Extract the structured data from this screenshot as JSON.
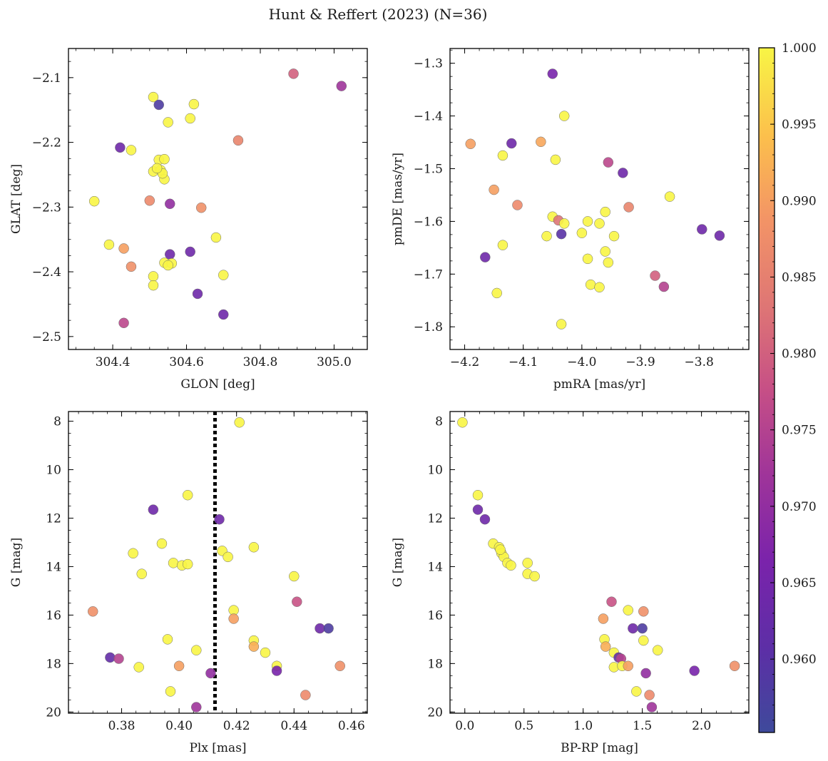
{
  "title": "Hunt & Reffert (2023) (N=36)",
  "colorbar": {
    "range": [
      0.9552,
      1.0
    ],
    "ticks": [
      "0.960",
      "0.965",
      "0.970",
      "0.975",
      "0.980",
      "0.985",
      "0.990",
      "0.995",
      "1.000"
    ],
    "colormap": "plasma"
  },
  "chart_data": [
    {
      "type": "scatter",
      "xlabel": "GLON [deg]",
      "ylabel": "GLAT [deg]",
      "xlim": [
        304.28,
        305.09
      ],
      "ylim": [
        -2.52,
        -2.055
      ],
      "xticks": [
        304.4,
        304.6,
        304.8,
        305.0
      ],
      "xticklabels": [
        "304.4",
        "304.6",
        "304.8",
        "305.0"
      ],
      "yticks": [
        -2.1,
        -2.2,
        -2.3,
        -2.4,
        -2.5
      ],
      "yticklabels": [
        "−2.1",
        "−2.2",
        "−2.3",
        "−2.4",
        "−2.5"
      ],
      "points": [
        [
          304.89,
          -2.094,
          0.98
        ],
        [
          305.02,
          -2.113,
          0.972
        ],
        [
          304.51,
          -2.13,
          1.0
        ],
        [
          304.525,
          -2.142,
          0.958
        ],
        [
          304.62,
          -2.141,
          1.0
        ],
        [
          304.61,
          -2.163,
          1.0
        ],
        [
          304.55,
          -2.169,
          1.0
        ],
        [
          304.74,
          -2.197,
          0.986
        ],
        [
          304.42,
          -2.208,
          0.964
        ],
        [
          304.45,
          -2.212,
          1.0
        ],
        [
          304.525,
          -2.227,
          1.0
        ],
        [
          304.54,
          -2.226,
          1.0
        ],
        [
          304.51,
          -2.245,
          1.0
        ],
        [
          304.53,
          -2.243,
          1.0
        ],
        [
          304.54,
          -2.257,
          1.0
        ],
        [
          304.35,
          -2.291,
          1.0
        ],
        [
          304.5,
          -2.29,
          0.987
        ],
        [
          304.555,
          -2.295,
          0.97
        ],
        [
          304.64,
          -2.301,
          0.988
        ],
        [
          304.68,
          -2.347,
          1.0
        ],
        [
          304.39,
          -2.358,
          1.0
        ],
        [
          304.43,
          -2.364,
          0.99
        ],
        [
          304.61,
          -2.369,
          0.964
        ],
        [
          304.555,
          -2.373,
          0.964
        ],
        [
          304.54,
          -2.386,
          1.0
        ],
        [
          304.56,
          -2.387,
          1.0
        ],
        [
          304.45,
          -2.392,
          0.988
        ],
        [
          304.7,
          -2.405,
          1.0
        ],
        [
          304.51,
          -2.407,
          1.0
        ],
        [
          304.51,
          -2.421,
          1.0
        ],
        [
          304.63,
          -2.434,
          0.964
        ],
        [
          304.7,
          -2.466,
          0.964
        ],
        [
          304.43,
          -2.479,
          0.976
        ],
        [
          304.55,
          -2.39,
          1.0
        ],
        [
          304.535,
          -2.248,
          1.0
        ],
        [
          304.52,
          -2.24,
          1.0
        ]
      ]
    },
    {
      "type": "scatter",
      "xlabel": "pmRA [mas/yr]",
      "ylabel": "pmDE [mas/yr]",
      "xlim": [
        -4.225,
        -3.715
      ],
      "ylim": [
        -1.843,
        -1.272
      ],
      "xticks": [
        -4.2,
        -4.1,
        -4.0,
        -3.9,
        -3.8
      ],
      "xticklabels": [
        "−4.2",
        "−4.1",
        "−4.0",
        "−3.9",
        "−3.8"
      ],
      "yticks": [
        -1.3,
        -1.4,
        -1.5,
        -1.6,
        -1.7,
        -1.8
      ],
      "yticklabels": [
        "−1.3",
        "−1.4",
        "−1.5",
        "−1.6",
        "−1.7",
        "−1.8"
      ],
      "points": [
        [
          -4.05,
          -1.32,
          0.966
        ],
        [
          -4.03,
          -1.4,
          1.0
        ],
        [
          -4.19,
          -1.453,
          0.99
        ],
        [
          -4.12,
          -1.452,
          0.964
        ],
        [
          -4.07,
          -1.449,
          0.991
        ],
        [
          -4.135,
          -1.475,
          1.0
        ],
        [
          -4.045,
          -1.483,
          1.0
        ],
        [
          -3.955,
          -1.488,
          0.976
        ],
        [
          -3.93,
          -1.508,
          0.964
        ],
        [
          -4.15,
          -1.54,
          0.99
        ],
        [
          -3.85,
          -1.553,
          1.0
        ],
        [
          -4.11,
          -1.569,
          0.987
        ],
        [
          -3.92,
          -1.573,
          0.986
        ],
        [
          -3.96,
          -1.582,
          1.0
        ],
        [
          -4.05,
          -1.591,
          1.0
        ],
        [
          -4.04,
          -1.598,
          0.983
        ],
        [
          -3.99,
          -1.6,
          1.0
        ],
        [
          -3.97,
          -1.604,
          1.0
        ],
        [
          -4.03,
          -1.604,
          1.0
        ],
        [
          -4.0,
          -1.622,
          1.0
        ],
        [
          -4.035,
          -1.624,
          0.96
        ],
        [
          -3.795,
          -1.615,
          0.964
        ],
        [
          -3.765,
          -1.627,
          0.964
        ],
        [
          -4.06,
          -1.628,
          1.0
        ],
        [
          -3.945,
          -1.628,
          1.0
        ],
        [
          -4.135,
          -1.645,
          1.0
        ],
        [
          -3.96,
          -1.657,
          1.0
        ],
        [
          -4.165,
          -1.668,
          0.964
        ],
        [
          -3.99,
          -1.671,
          1.0
        ],
        [
          -3.955,
          -1.678,
          1.0
        ],
        [
          -3.875,
          -1.703,
          0.98
        ],
        [
          -3.86,
          -1.724,
          0.975
        ],
        [
          -3.985,
          -1.72,
          1.0
        ],
        [
          -3.97,
          -1.725,
          1.0
        ],
        [
          -4.145,
          -1.736,
          1.0
        ],
        [
          -4.035,
          -1.795,
          1.0
        ]
      ]
    },
    {
      "type": "scatter",
      "xlabel": "Plx [mas]",
      "ylabel": "G [mag]",
      "xlim": [
        0.3615,
        0.4655
      ],
      "ylim": [
        20.05,
        7.6
      ],
      "vline": {
        "x": 0.4125,
        "style": "dotted"
      },
      "xticks": [
        0.38,
        0.4,
        0.42,
        0.44,
        0.46
      ],
      "xticklabels": [
        "0.38",
        "0.40",
        "0.42",
        "0.44",
        "0.46"
      ],
      "yticks": [
        8,
        10,
        12,
        14,
        16,
        18,
        20
      ],
      "yticklabels": [
        "8",
        "10",
        "12",
        "14",
        "16",
        "18",
        "20"
      ],
      "points": [
        [
          0.421,
          8.05,
          1.0
        ],
        [
          0.403,
          11.05,
          1.0
        ],
        [
          0.391,
          11.65,
          0.964
        ],
        [
          0.414,
          12.05,
          0.964
        ],
        [
          0.394,
          13.05,
          1.0
        ],
        [
          0.426,
          13.2,
          1.0
        ],
        [
          0.384,
          13.45,
          1.0
        ],
        [
          0.415,
          13.35,
          1.0
        ],
        [
          0.417,
          13.6,
          1.0
        ],
        [
          0.398,
          13.85,
          1.0
        ],
        [
          0.401,
          13.95,
          1.0
        ],
        [
          0.403,
          13.9,
          1.0
        ],
        [
          0.387,
          14.3,
          1.0
        ],
        [
          0.44,
          14.4,
          1.0
        ],
        [
          0.441,
          15.45,
          0.978
        ],
        [
          0.37,
          15.85,
          0.988
        ],
        [
          0.419,
          15.8,
          1.0
        ],
        [
          0.419,
          16.15,
          0.99
        ],
        [
          0.449,
          16.55,
          0.964
        ],
        [
          0.452,
          16.55,
          0.958
        ],
        [
          0.396,
          17.0,
          1.0
        ],
        [
          0.426,
          17.05,
          1.0
        ],
        [
          0.426,
          17.3,
          0.992
        ],
        [
          0.406,
          17.45,
          1.0
        ],
        [
          0.43,
          17.55,
          1.0
        ],
        [
          0.376,
          17.75,
          0.962
        ],
        [
          0.379,
          17.8,
          0.975
        ],
        [
          0.386,
          18.15,
          1.0
        ],
        [
          0.4,
          18.1,
          0.99
        ],
        [
          0.434,
          18.1,
          1.0
        ],
        [
          0.456,
          18.1,
          0.988
        ],
        [
          0.434,
          18.3,
          0.966
        ],
        [
          0.411,
          18.4,
          0.97
        ],
        [
          0.397,
          19.15,
          1.0
        ],
        [
          0.444,
          19.3,
          0.987
        ],
        [
          0.406,
          19.8,
          0.972
        ]
      ]
    },
    {
      "type": "scatter",
      "xlabel": "BP-RP [mag]",
      "ylabel": "G [mag]",
      "xlim": [
        -0.125,
        2.4
      ],
      "ylim": [
        20.05,
        7.6
      ],
      "xticks": [
        0.0,
        0.5,
        1.0,
        1.5,
        2.0
      ],
      "xticklabels": [
        "0.0",
        "0.5",
        "1.0",
        "1.5",
        "2.0"
      ],
      "yticks": [
        8,
        10,
        12,
        14,
        16,
        18,
        20
      ],
      "yticklabels": [
        "8",
        "10",
        "12",
        "14",
        "16",
        "18",
        "20"
      ],
      "points": [
        [
          -0.02,
          8.05,
          1.0
        ],
        [
          0.11,
          11.05,
          1.0
        ],
        [
          0.11,
          11.65,
          0.964
        ],
        [
          0.17,
          12.05,
          0.964
        ],
        [
          0.24,
          13.05,
          1.0
        ],
        [
          0.29,
          13.2,
          1.0
        ],
        [
          0.31,
          13.45,
          1.0
        ],
        [
          0.33,
          13.6,
          1.0
        ],
        [
          0.36,
          13.85,
          1.0
        ],
        [
          0.39,
          13.95,
          1.0
        ],
        [
          0.53,
          13.85,
          1.0
        ],
        [
          0.53,
          14.3,
          1.0
        ],
        [
          0.59,
          14.4,
          1.0
        ],
        [
          1.24,
          15.45,
          0.978
        ],
        [
          1.38,
          15.8,
          1.0
        ],
        [
          1.51,
          15.85,
          0.988
        ],
        [
          1.17,
          16.15,
          0.99
        ],
        [
          1.42,
          16.55,
          0.964
        ],
        [
          1.5,
          16.55,
          0.958
        ],
        [
          1.18,
          17.0,
          1.0
        ],
        [
          1.51,
          17.05,
          1.0
        ],
        [
          1.19,
          17.3,
          0.992
        ],
        [
          1.63,
          17.45,
          1.0
        ],
        [
          1.26,
          17.55,
          1.0
        ],
        [
          1.3,
          17.75,
          0.962
        ],
        [
          1.32,
          17.8,
          0.975
        ],
        [
          1.26,
          18.15,
          1.0
        ],
        [
          1.33,
          18.1,
          1.0
        ],
        [
          1.38,
          18.1,
          0.99
        ],
        [
          2.28,
          18.1,
          0.988
        ],
        [
          1.94,
          18.3,
          0.966
        ],
        [
          1.53,
          18.4,
          0.97
        ],
        [
          1.45,
          19.15,
          1.0
        ],
        [
          1.56,
          19.3,
          0.987
        ],
        [
          1.58,
          19.8,
          0.972
        ],
        [
          0.3,
          13.3,
          1.0
        ]
      ]
    }
  ]
}
